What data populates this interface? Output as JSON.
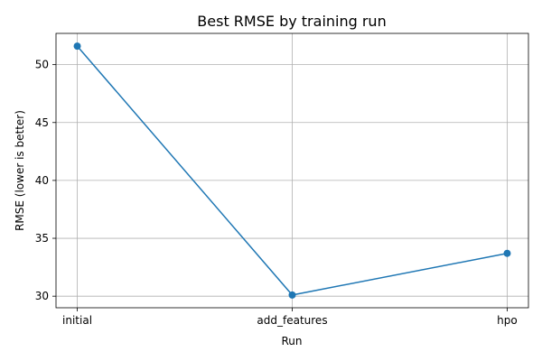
{
  "chart_data": {
    "type": "line",
    "title": "Best RMSE by training run",
    "xlabel": "Run",
    "ylabel": "RMSE (lower is better)",
    "categories": [
      "initial",
      "add_features",
      "hpo"
    ],
    "series": [
      {
        "values": [
          51.6,
          30.1,
          33.7
        ]
      }
    ],
    "ylim": [
      29.0,
      52.7
    ],
    "yticks": [
      30,
      35,
      40,
      45,
      50
    ],
    "grid": true,
    "marker": "circle",
    "colors": {
      "line": "#1f77b4",
      "grid": "#b0b0b0",
      "axes": "#000000"
    }
  }
}
